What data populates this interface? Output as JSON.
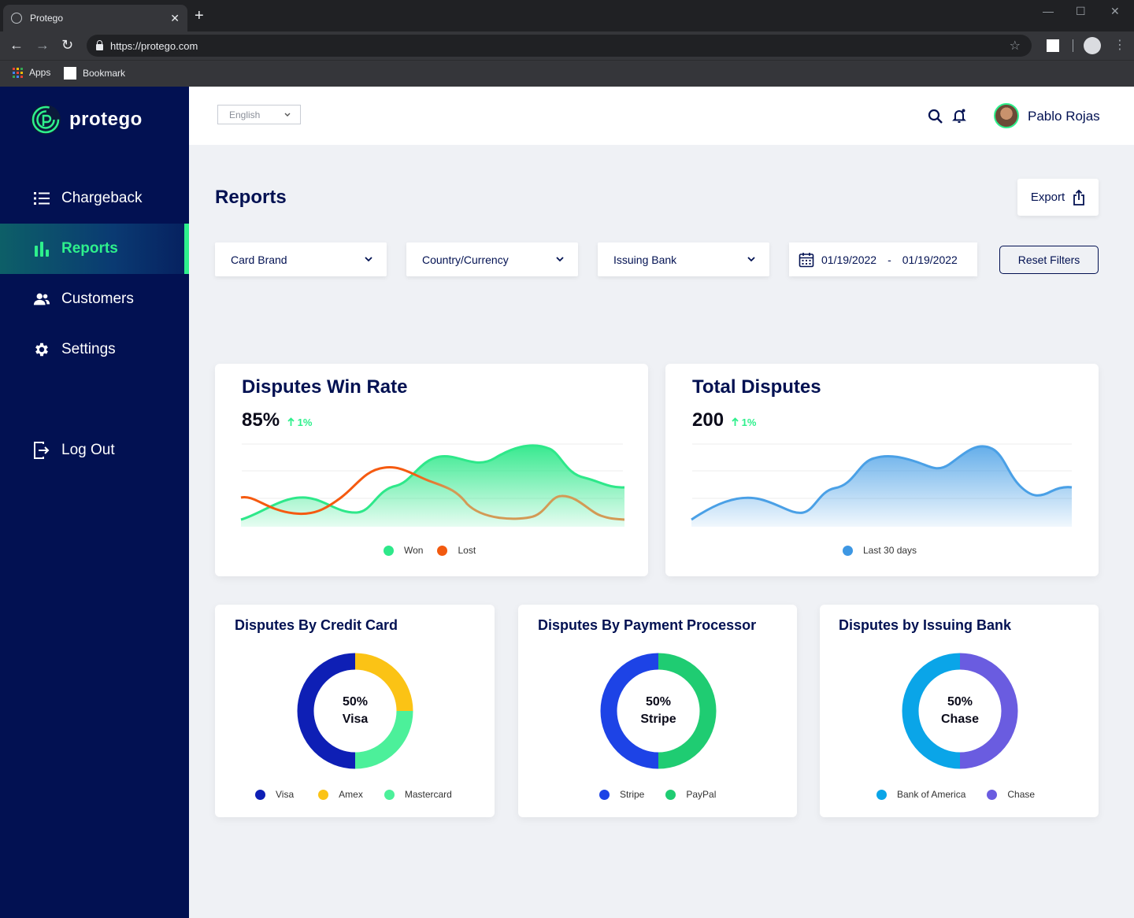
{
  "browser": {
    "tab_title": "Protego",
    "url": "https://protego.com",
    "bookmarks": [
      {
        "label": "Apps"
      },
      {
        "label": "Bookmark"
      }
    ]
  },
  "sidebar": {
    "brand": "protego",
    "items": [
      {
        "label": "Chargeback",
        "icon": "list-icon"
      },
      {
        "label": "Reports",
        "icon": "bar-chart-icon",
        "active": true
      },
      {
        "label": "Customers",
        "icon": "users-icon"
      },
      {
        "label": "Settings",
        "icon": "gear-icon"
      }
    ],
    "logout": "Log Out"
  },
  "header": {
    "language": "English",
    "user_name": "Pablo Rojas"
  },
  "page": {
    "title": "Reports",
    "export_label": "Export",
    "filters": [
      "Card Brand",
      "Country/Currency",
      "Issuing Bank"
    ],
    "date_from": "01/19/2022",
    "date_separator": "-",
    "date_to": "01/19/2022",
    "reset_label": "Reset Filters"
  },
  "colors": {
    "navy": "#021152",
    "accent_green": "#2ef08c",
    "lost_orange": "#f26a1b",
    "blue_area": "#4aa0e6"
  },
  "win_rate": {
    "title": "Disputes Win Rate",
    "value": "85%",
    "delta": "1%",
    "legend": [
      {
        "label": "Won",
        "color": "#2ee88a"
      },
      {
        "label": "Lost",
        "color": "#f25a0f"
      }
    ]
  },
  "total_disputes": {
    "title": "Total Disputes",
    "value": "200",
    "delta": "1%",
    "legend": [
      {
        "label": "Last 30 days",
        "color": "#3d97e3"
      }
    ]
  },
  "donuts": [
    {
      "title": "Disputes By Credit Card",
      "center_pct": "50%",
      "center_label": "Visa",
      "segments": [
        {
          "label": "Visa",
          "value": 50,
          "color": "#0e1fb5"
        },
        {
          "label": "Amex",
          "value": 25,
          "color": "#fbc315"
        },
        {
          "label": "Mastercard",
          "value": 25,
          "color": "#4cf09a"
        }
      ]
    },
    {
      "title": "Disputes By Payment Processor",
      "center_pct": "50%",
      "center_label": "Stripe",
      "segments": [
        {
          "label": "Stripe",
          "value": 50,
          "color": "#1d43e6"
        },
        {
          "label": "PayPal",
          "value": 50,
          "color": "#1fcc72"
        }
      ]
    },
    {
      "title": "Disputes by Issuing Bank",
      "center_pct": "50%",
      "center_label": "Chase",
      "segments": [
        {
          "label": "Bank of America",
          "value": 50,
          "color": "#0aa5e8"
        },
        {
          "label": "Chase",
          "value": 50,
          "color": "#6a5ce0"
        }
      ]
    }
  ]
}
